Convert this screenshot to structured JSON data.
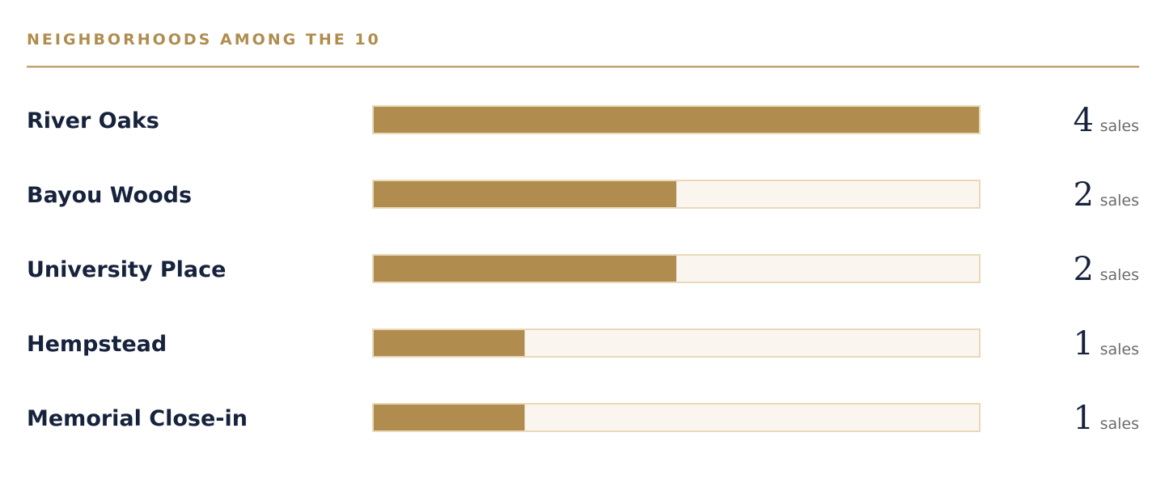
{
  "chart_data": {
    "type": "bar",
    "orientation": "horizontal",
    "title": "NEIGHBORHOODS AMONG THE 10",
    "categories": [
      "River Oaks",
      "Bayou Woods",
      "University Place",
      "Hempstead",
      "Memorial Close-in"
    ],
    "values": [
      4,
      2,
      2,
      1,
      1
    ],
    "unit": "sales",
    "color": "#b08d4f",
    "track_color": "#faf6ef",
    "track_border": "#ead9b8"
  }
}
